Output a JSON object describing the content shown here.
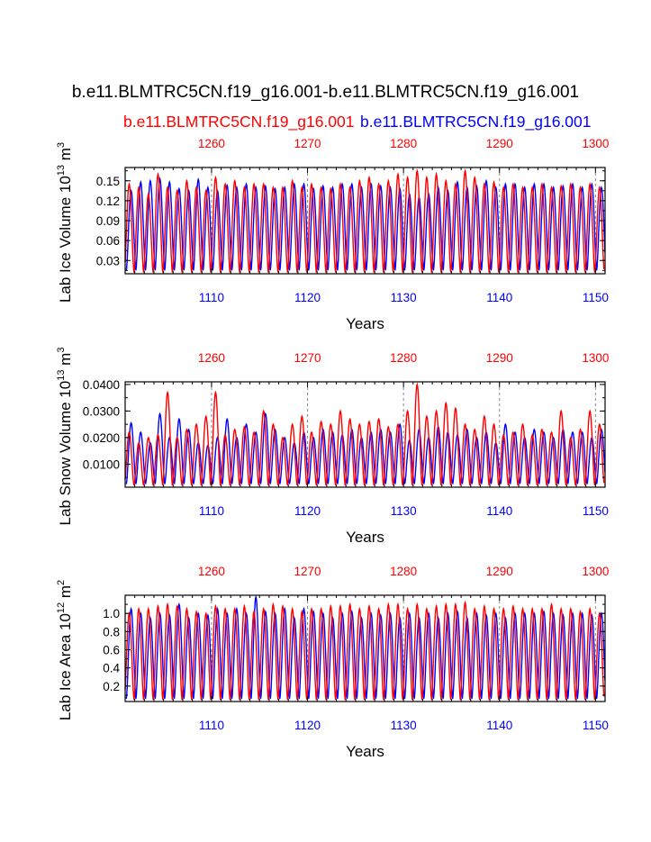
{
  "title": "b.e11.BLMTRC5CN.f19_g16.001-b.e11.BLMTRC5CN.f19_g16.001",
  "legend": {
    "red_label": "b.e11.BLMTRC5CN.f19_g16.001",
    "blue_label": "b.e11.BLMTRC5CN.f19_g16.001"
  },
  "colors": {
    "red": "#ff0000",
    "blue": "#0000ff",
    "axis": "#000000",
    "grid": "#888888"
  },
  "chart_data": [
    {
      "type": "line",
      "ylabel": "Lab Ice Volume 10^13 m^3",
      "ylabel_base": "Lab Ice Volume 10",
      "ylabel_exp": "13",
      "ylabel_unit": " m",
      "ylabel_unit_exp": "3",
      "xlabel": "Years",
      "ylim": [
        0.01,
        0.17
      ],
      "yticks": [
        0.03,
        0.06,
        0.09,
        0.12,
        0.15
      ],
      "ytick_labels": [
        "0.03",
        "0.06",
        "0.09",
        "0.12",
        "0.15"
      ],
      "xlim_bottom": [
        1101.0,
        1151.0
      ],
      "xticks_bottom": [
        1110,
        1120,
        1130,
        1140,
        1150
      ],
      "xlim_top": [
        1251.0,
        1301.0
      ],
      "xticks_top": [
        1260,
        1270,
        1280,
        1290,
        1300
      ],
      "series": [
        {
          "name": "b.e11.BLMTRC5CN.f19_g16.001 (years 1101-1151)",
          "color": "blue",
          "min": 0.015,
          "max": [
            0.135,
            0.148,
            0.15,
            0.153,
            0.148,
            0.138,
            0.135,
            0.152,
            0.14,
            0.135,
            0.143,
            0.14,
            0.145,
            0.14,
            0.142,
            0.138,
            0.14,
            0.145,
            0.145,
            0.138,
            0.142,
            0.14,
            0.145,
            0.145,
            0.14,
            0.145,
            0.142,
            0.14,
            0.138,
            0.13,
            0.125,
            0.13,
            0.14,
            0.135,
            0.148,
            0.14,
            0.142,
            0.15,
            0.14,
            0.145,
            0.145,
            0.14,
            0.145,
            0.145,
            0.14,
            0.142,
            0.145,
            0.14,
            0.145,
            0.14
          ]
        },
        {
          "name": "b.e11.BLMTRC5CN.f19_g16.001 (years 1251-1301)",
          "color": "red",
          "min": 0.012,
          "max": [
            0.145,
            0.14,
            0.13,
            0.16,
            0.14,
            0.135,
            0.15,
            0.14,
            0.135,
            0.155,
            0.145,
            0.15,
            0.14,
            0.145,
            0.145,
            0.14,
            0.14,
            0.15,
            0.14,
            0.145,
            0.14,
            0.138,
            0.145,
            0.14,
            0.15,
            0.155,
            0.145,
            0.15,
            0.16,
            0.155,
            0.165,
            0.155,
            0.16,
            0.15,
            0.145,
            0.165,
            0.155,
            0.145,
            0.148,
            0.14,
            0.145,
            0.14,
            0.14,
            0.145,
            0.14,
            0.142,
            0.145,
            0.14,
            0.145,
            0.14
          ]
        }
      ]
    },
    {
      "type": "line",
      "ylabel": "Lab Snow Volume 10^13 m^3",
      "ylabel_base": "Lab Snow Volume 10",
      "ylabel_exp": "13",
      "ylabel_unit": " m",
      "ylabel_unit_exp": "3",
      "xlabel": "Years",
      "ylim": [
        0.0013,
        0.041
      ],
      "yticks": [
        0.01,
        0.02,
        0.03,
        0.04
      ],
      "ytick_labels": [
        "0.0100",
        "0.0200",
        "0.0300",
        "0.0400"
      ],
      "xlim_bottom": [
        1101.0,
        1151.0
      ],
      "xticks_bottom": [
        1110,
        1120,
        1130,
        1140,
        1150
      ],
      "xlim_top": [
        1251.0,
        1301.0
      ],
      "xticks_top": [
        1260,
        1270,
        1280,
        1290,
        1300
      ],
      "series": [
        {
          "name": "b.e11.BLMTRC5CN.f19_g16.001 (years 1101-1151)",
          "color": "blue",
          "min": 0.0025,
          "max": [
            0.0255,
            0.022,
            0.018,
            0.029,
            0.02,
            0.027,
            0.023,
            0.018,
            0.017,
            0.02,
            0.027,
            0.02,
            0.025,
            0.022,
            0.029,
            0.023,
            0.02,
            0.018,
            0.022,
            0.02,
            0.023,
            0.022,
            0.021,
            0.023,
            0.02,
            0.022,
            0.023,
            0.022,
            0.025,
            0.019,
            0.023,
            0.02,
            0.024,
            0.022,
            0.021,
            0.023,
            0.02,
            0.022,
            0.018,
            0.025,
            0.022,
            0.02,
            0.023,
            0.022,
            0.02,
            0.023,
            0.022,
            0.022,
            0.02,
            0.023
          ]
        },
        {
          "name": "b.e11.BLMTRC5CN.f19_g16.001 (years 1251-1301)",
          "color": "red",
          "min": 0.002,
          "max": [
            0.022,
            0.018,
            0.02,
            0.021,
            0.037,
            0.02,
            0.023,
            0.025,
            0.028,
            0.037,
            0.021,
            0.023,
            0.024,
            0.022,
            0.03,
            0.025,
            0.02,
            0.025,
            0.028,
            0.022,
            0.026,
            0.025,
            0.03,
            0.027,
            0.025,
            0.026,
            0.027,
            0.024,
            0.025,
            0.03,
            0.04,
            0.028,
            0.03,
            0.033,
            0.031,
            0.025,
            0.023,
            0.028,
            0.025,
            0.021,
            0.022,
            0.025,
            0.021,
            0.023,
            0.022,
            0.03,
            0.02,
            0.023,
            0.03,
            0.025
          ]
        }
      ]
    },
    {
      "type": "line",
      "ylabel": "Lab Ice Area 10^12 m^2",
      "ylabel_base": "Lab Ice Area 10",
      "ylabel_exp": "12",
      "ylabel_unit": " m",
      "ylabel_unit_exp": "2",
      "xlabel": "Years",
      "ylim": [
        0.03,
        1.2
      ],
      "yticks": [
        0.2,
        0.4,
        0.6,
        0.8,
        1.0
      ],
      "ytick_labels": [
        "0.2",
        "0.4",
        "0.6",
        "0.8",
        "1.0"
      ],
      "xlim_bottom": [
        1101.0,
        1151.0
      ],
      "xticks_bottom": [
        1110,
        1120,
        1130,
        1140,
        1150
      ],
      "xlim_top": [
        1251.0,
        1301.0
      ],
      "xticks_top": [
        1260,
        1270,
        1280,
        1290,
        1300
      ],
      "series": [
        {
          "name": "b.e11.BLMTRC5CN.f19_g16.001 (years 1101-1151)",
          "color": "blue",
          "min": 0.06,
          "max": [
            1.05,
            1.0,
            0.95,
            1.0,
            0.98,
            1.1,
            0.95,
            1.0,
            0.98,
            1.05,
            1.0,
            1.05,
            1.0,
            1.18,
            1.02,
            1.0,
            1.05,
            0.95,
            1.05,
            1.02,
            1.0,
            0.95,
            1.0,
            1.02,
            0.95,
            1.0,
            0.98,
            1.0,
            0.95,
            1.0,
            0.95,
            1.0,
            0.95,
            1.0,
            1.02,
            0.95,
            1.0,
            0.98,
            1.0,
            0.95,
            1.0,
            1.0,
            1.0,
            1.02,
            1.0,
            0.98,
            1.0,
            1.0,
            0.98,
            1.0
          ]
        },
        {
          "name": "b.e11.BLMTRC5CN.f19_g16.001 (years 1251-1301)",
          "color": "red",
          "min": 0.05,
          "max": [
            1.0,
            1.05,
            1.05,
            1.08,
            1.1,
            1.08,
            1.05,
            1.02,
            1.0,
            1.08,
            1.05,
            1.05,
            1.08,
            1.02,
            1.05,
            1.1,
            1.08,
            1.05,
            1.02,
            1.05,
            1.05,
            1.08,
            1.08,
            1.1,
            1.05,
            1.08,
            1.05,
            1.1,
            1.1,
            1.05,
            1.1,
            1.05,
            1.08,
            1.1,
            1.1,
            1.12,
            1.05,
            1.08,
            1.05,
            1.05,
            1.08,
            1.05,
            1.05,
            1.05,
            1.1,
            1.05,
            1.05,
            1.02,
            1.05,
            1.0
          ]
        }
      ]
    }
  ]
}
